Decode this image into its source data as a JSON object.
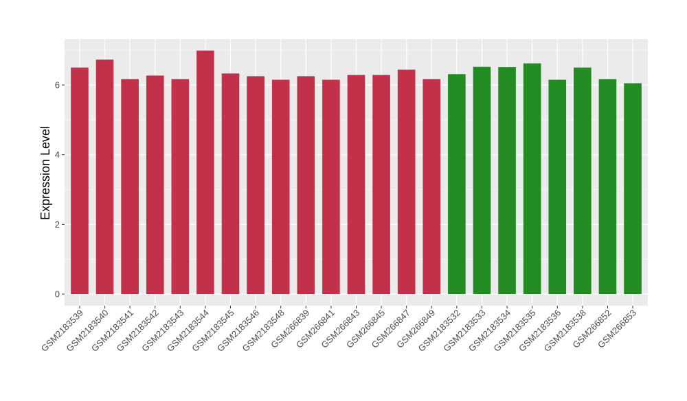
{
  "chart_data": {
    "type": "bar",
    "title": "",
    "xlabel": "",
    "ylabel": "Expression Level",
    "ylim": [
      0,
      7.3
    ],
    "yticks": [
      0,
      2,
      4,
      6
    ],
    "grid": true,
    "legend": "none",
    "colors": {
      "group1": "#C3304A",
      "group2": "#228B22",
      "panel_bg": "#EBEBEB",
      "grid": "#FFFFFF"
    },
    "categories": [
      "GSM2183539",
      "GSM2183540",
      "GSM2183541",
      "GSM2183542",
      "GSM2183543",
      "GSM2183544",
      "GSM2183545",
      "GSM2183546",
      "GSM2183548",
      "GSM266839",
      "GSM266841",
      "GSM266843",
      "GSM266845",
      "GSM266847",
      "GSM266849",
      "GSM2183532",
      "GSM2183533",
      "GSM2183534",
      "GSM2183535",
      "GSM2183536",
      "GSM2183538",
      "GSM266852",
      "GSM266853"
    ],
    "values": [
      6.5,
      6.73,
      6.17,
      6.27,
      6.17,
      6.99,
      6.33,
      6.25,
      6.15,
      6.25,
      6.15,
      6.29,
      6.29,
      6.44,
      6.17,
      6.31,
      6.52,
      6.51,
      6.62,
      6.15,
      6.5,
      6.17,
      6.05
    ],
    "groups": [
      1,
      1,
      1,
      1,
      1,
      1,
      1,
      1,
      1,
      1,
      1,
      1,
      1,
      1,
      1,
      2,
      2,
      2,
      2,
      2,
      2,
      2,
      2
    ]
  }
}
